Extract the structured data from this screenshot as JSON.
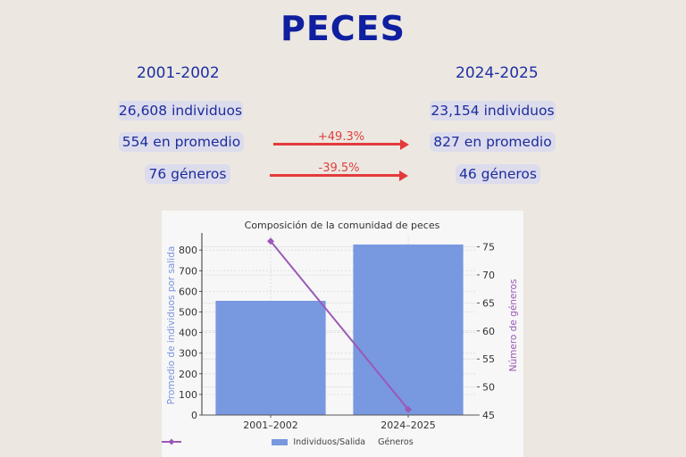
{
  "header": {
    "title": "PECES"
  },
  "periods": {
    "left": "2001-2002",
    "right": "2024-2025"
  },
  "left_stats": {
    "individuals": "26,608 individuos",
    "average": "554 en promedio",
    "genera": "76 géneros"
  },
  "right_stats": {
    "individuals": "23,154 individuos",
    "average": "827 en promedio",
    "genera": "46 géneros"
  },
  "changes": {
    "average_change": "+49.3%",
    "genera_change": "-39.5%"
  },
  "colors": {
    "background": "#ece8e1",
    "title": "#0f1fa0",
    "pill": "#dcdcec",
    "arrow": "#e43a3c",
    "bar": "#7898e0",
    "line": "#9b59b6",
    "left_axis_label": "#7b95e0",
    "right_axis_label": "#9b59b6"
  },
  "chart_data": {
    "type": "bar",
    "title": "Composición de la comunidad de peces",
    "categories": [
      "2001–2002",
      "2024–2025"
    ],
    "series": [
      {
        "name": "Individuos/Salida",
        "type": "bar",
        "axis": "left",
        "values": [
          554,
          827
        ]
      },
      {
        "name": "Géneros",
        "type": "line",
        "axis": "right",
        "marker": "diamond",
        "values": [
          76,
          46
        ]
      }
    ],
    "ylabel": "Promedio de individuos por salida",
    "ylabel_right": "Número de géneros",
    "xlabel": "",
    "ylim": [
      0,
      870
    ],
    "ylim_right": [
      45,
      77
    ],
    "yticks": [
      "0",
      "100",
      "200",
      "300",
      "400",
      "500",
      "600",
      "700",
      "800"
    ],
    "yticks_right": [
      "45",
      "50",
      "55",
      "60",
      "65",
      "70",
      "75"
    ],
    "grid": true,
    "legend": [
      "Individuos/Salida",
      "Géneros"
    ],
    "legend_position": "bottom"
  }
}
